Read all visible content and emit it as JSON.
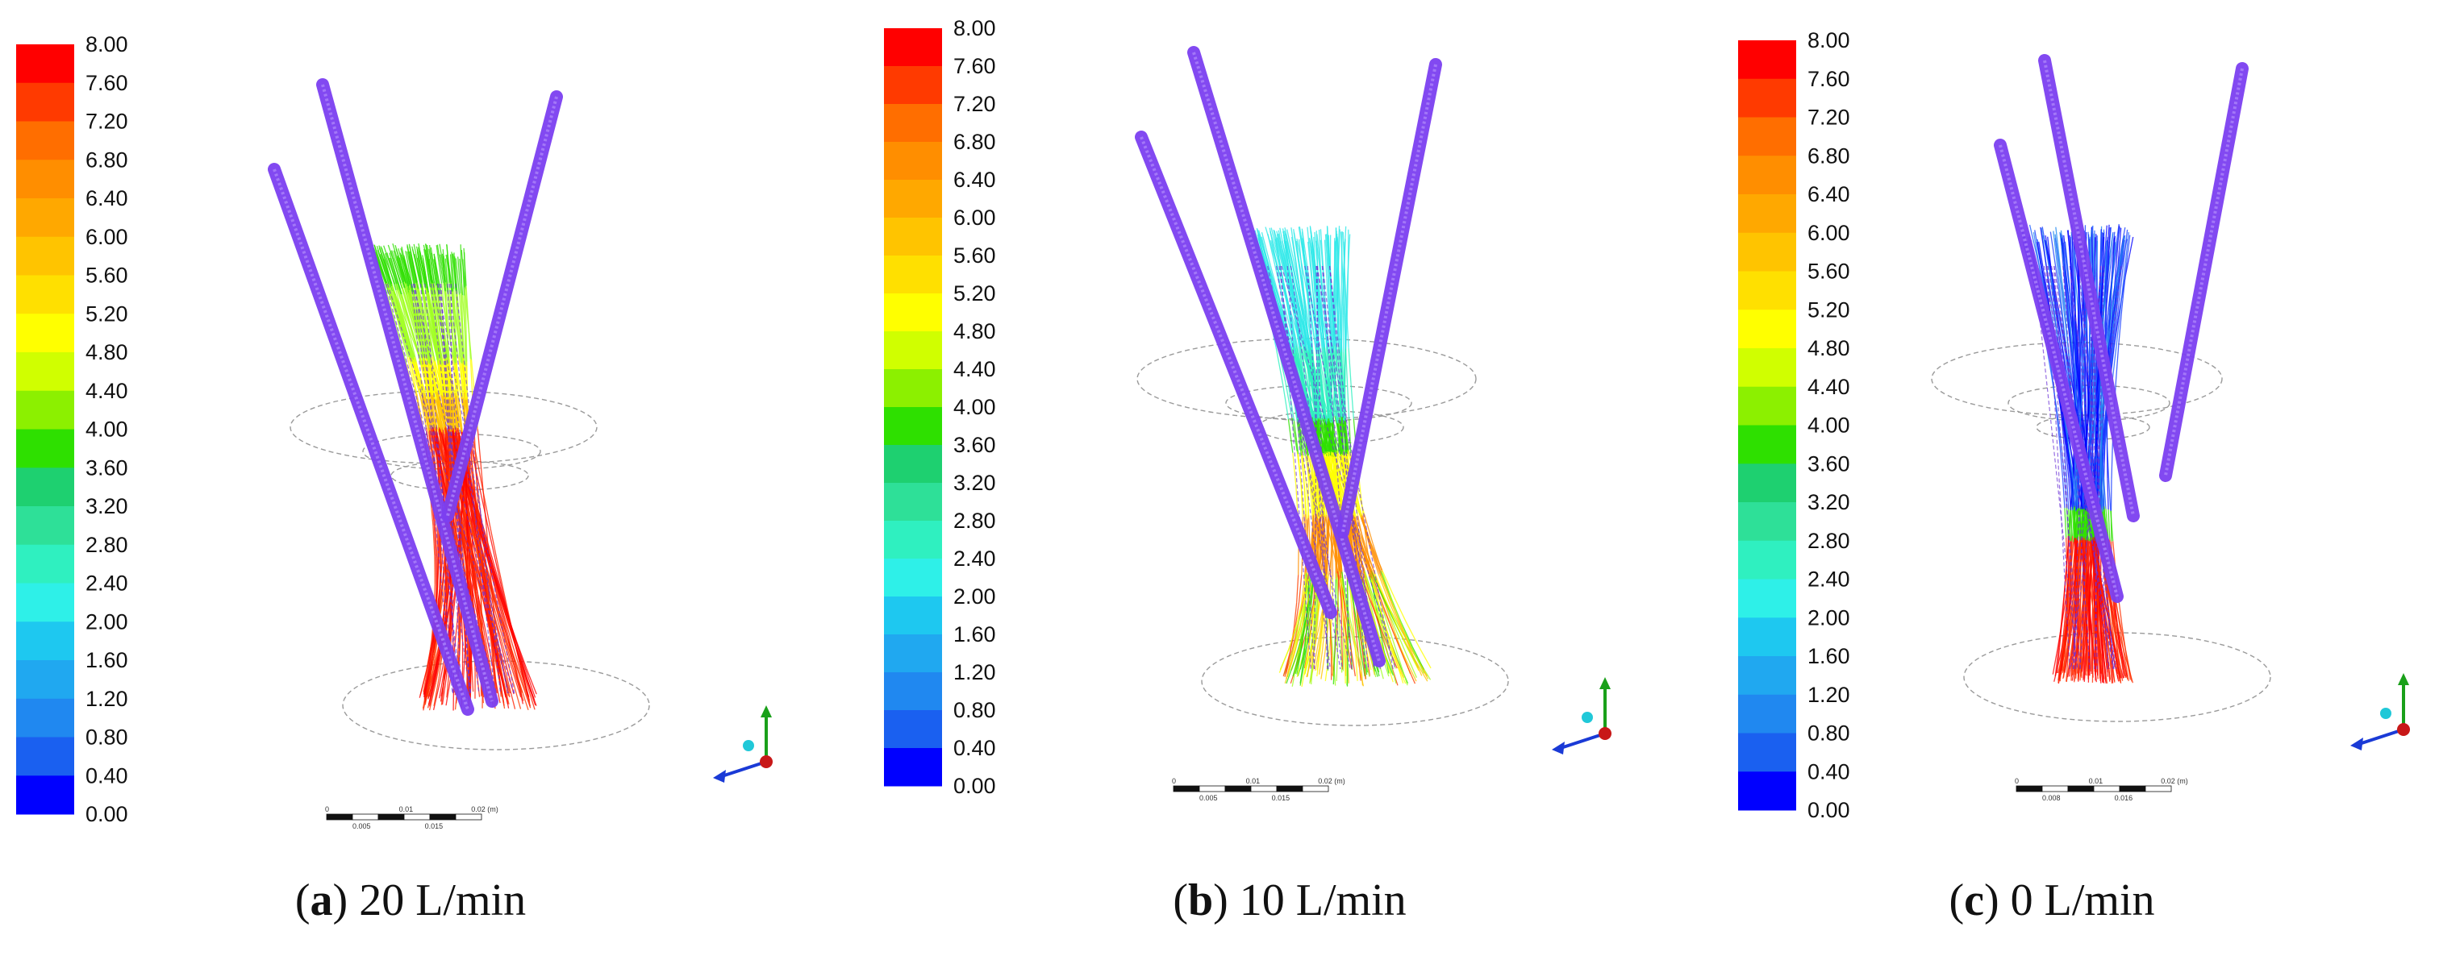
{
  "colorbar": {
    "ticks": [
      "8.00",
      "7.60",
      "7.20",
      "6.80",
      "6.40",
      "6.00",
      "5.60",
      "5.20",
      "4.80",
      "4.40",
      "4.00",
      "3.60",
      "3.20",
      "2.80",
      "2.40",
      "2.00",
      "1.60",
      "1.20",
      "0.80",
      "0.40",
      "0.00"
    ],
    "colors": [
      "#ff0000",
      "#ff3a00",
      "#ff6e00",
      "#ff8e00",
      "#ffa800",
      "#ffc400",
      "#ffe000",
      "#ffff00",
      "#d0ff00",
      "#8cf000",
      "#2ee000",
      "#1ed070",
      "#2ee098",
      "#2ff0c0",
      "#2ef0e8",
      "#1ec8f0",
      "#20a8f0",
      "#2088f0",
      "#1a60f0",
      "#0000ff"
    ]
  },
  "colors": {
    "wire_purple": "#6a2fd6",
    "tube_purple": "#7b3ff0"
  },
  "icons": [
    "axis-triad-icon",
    "scale-bar-icon"
  ],
  "panels": [
    {
      "id": "a",
      "caption_letter": "a",
      "caption_text": "20 L/min",
      "palette": [
        "#ff0000",
        "#ff2000",
        "#ff3a00",
        "#ff6e00",
        "#ffc400",
        "#ffff00",
        "#a0ff20",
        "#2ee000"
      ],
      "scale_labels": [
        "0",
        "0.01",
        "0.02 (m)",
        "0.005",
        "0.015"
      ]
    },
    {
      "id": "b",
      "caption_letter": "b",
      "caption_text": "10 L/min",
      "palette": [
        "#ff4000",
        "#ff8e00",
        "#ffc400",
        "#ffff00",
        "#a0ff20",
        "#2ee000",
        "#2ef0c0",
        "#2ee8e8"
      ],
      "scale_labels": [
        "0",
        "0.01",
        "0.02 (m)",
        "0.005",
        "0.015"
      ]
    },
    {
      "id": "c",
      "caption_letter": "c",
      "caption_text": "0 L/min",
      "palette": [
        "#0000ff",
        "#1a40ff",
        "#2060ff",
        "#2088f0",
        "#ff0000",
        "#ff3000",
        "#ffff00",
        "#2ee000"
      ],
      "scale_labels": [
        "0",
        "0.01",
        "0.02 (m)",
        "0.008",
        "0.016"
      ]
    }
  ]
}
